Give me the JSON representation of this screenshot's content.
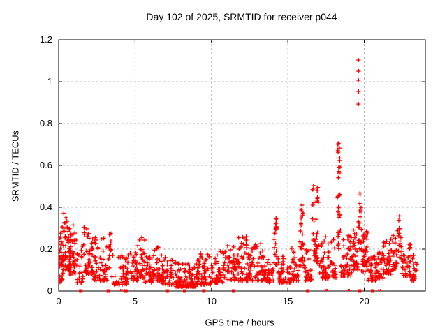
{
  "chart_data": {
    "type": "scatter",
    "title": "Day 102 of 2025, SRMTID for receiver p044",
    "xlabel": "GPS time / hours",
    "ylabel": "SRMTID / TECUs",
    "xlim": [
      0,
      24
    ],
    "ylim": [
      0,
      1.2
    ],
    "xticks": [
      0,
      5,
      10,
      15,
      20
    ],
    "yticks": [
      0,
      0.2,
      0.4,
      0.6,
      0.8,
      1,
      1.2
    ],
    "grid": true,
    "legend_position": "none",
    "marker": "plus-cross",
    "marker_color": "#ff0000",
    "grid_color": "#b3b3b3",
    "axis_color": "#000000",
    "background_color": "#ffffff",
    "series": [
      {
        "name": "SRMTID",
        "description": "dense + marker scatter; clusters give [x_start_hour, x_end_hour, n_points, y_min_TECU, y_max_TECU, low_bias_exponent] read off the plot",
        "clusters": [
          [
            0.02,
            0.35,
            40,
            0.04,
            0.31,
            1.6
          ],
          [
            0.3,
            0.75,
            50,
            0.1,
            0.375,
            1.4
          ],
          [
            0.7,
            1.1,
            40,
            0.07,
            0.335,
            1.5
          ],
          [
            1.1,
            1.65,
            28,
            0.04,
            0.27,
            2.2
          ],
          [
            1.65,
            2.3,
            60,
            0.08,
            0.315,
            1.8
          ],
          [
            2.3,
            3.15,
            55,
            0.05,
            0.26,
            2.0
          ],
          [
            3.2,
            3.45,
            14,
            0.1,
            0.295,
            1.2
          ],
          [
            3.45,
            4.65,
            50,
            0.03,
            0.18,
            1.8
          ],
          [
            4.65,
            5.15,
            30,
            0.05,
            0.19,
            1.8
          ],
          [
            5.15,
            5.65,
            32,
            0.06,
            0.26,
            1.8
          ],
          [
            5.65,
            6.2,
            35,
            0.04,
            0.17,
            1.8
          ],
          [
            6.2,
            6.75,
            38,
            0.05,
            0.235,
            1.8
          ],
          [
            6.75,
            7.65,
            50,
            0.03,
            0.16,
            1.8
          ],
          [
            7.65,
            9.05,
            95,
            0.02,
            0.14,
            1.9
          ],
          [
            9.05,
            9.95,
            60,
            0.03,
            0.18,
            1.8
          ],
          [
            9.95,
            10.95,
            60,
            0.04,
            0.19,
            1.9
          ],
          [
            10.95,
            11.65,
            42,
            0.05,
            0.225,
            1.9
          ],
          [
            11.65,
            12.55,
            58,
            0.05,
            0.26,
            1.9
          ],
          [
            12.55,
            13.45,
            55,
            0.05,
            0.23,
            1.9
          ],
          [
            13.45,
            14.05,
            35,
            0.04,
            0.16,
            1.7
          ],
          [
            14.1,
            14.32,
            22,
            0.12,
            0.375,
            1.1
          ],
          [
            14.35,
            15.15,
            42,
            0.04,
            0.17,
            1.7
          ],
          [
            15.15,
            15.75,
            36,
            0.05,
            0.21,
            1.7
          ],
          [
            15.78,
            16.02,
            24,
            0.12,
            0.42,
            1.1
          ],
          [
            16.05,
            16.55,
            30,
            0.05,
            0.22,
            1.7
          ],
          [
            16.6,
            17.05,
            45,
            0.13,
            0.51,
            1.3
          ],
          [
            17.05,
            18.15,
            65,
            0.06,
            0.26,
            1.9
          ],
          [
            18.25,
            18.45,
            30,
            0.2,
            0.775,
            1.0
          ],
          [
            18.45,
            19.25,
            48,
            0.07,
            0.27,
            1.8
          ],
          [
            19.25,
            19.58,
            26,
            0.1,
            0.31,
            1.5
          ],
          [
            19.6,
            19.82,
            20,
            0.14,
            0.55,
            1.2
          ],
          [
            19.8,
            20.25,
            38,
            0.09,
            0.29,
            1.6
          ],
          [
            20.25,
            20.75,
            30,
            0.05,
            0.17,
            1.8
          ],
          [
            20.75,
            21.25,
            34,
            0.06,
            0.19,
            1.8
          ],
          [
            21.25,
            21.8,
            38,
            0.08,
            0.25,
            1.7
          ],
          [
            21.8,
            22.15,
            26,
            0.1,
            0.27,
            1.6
          ],
          [
            22.18,
            22.42,
            16,
            0.14,
            0.36,
            1.1
          ],
          [
            22.45,
            23.1,
            40,
            0.07,
            0.25,
            1.8
          ],
          [
            23.1,
            23.45,
            22,
            0.05,
            0.18,
            1.6
          ]
        ],
        "outlier_points": [
          [
            19.62,
            0.893
          ],
          [
            19.63,
            0.953
          ],
          [
            19.62,
            1.007
          ],
          [
            19.63,
            1.05
          ],
          [
            19.62,
            1.103
          ]
        ],
        "peak_annotations": [
          {
            "x": 0.5,
            "y": 0.37
          },
          {
            "x": 2.0,
            "y": 0.31
          },
          {
            "x": 3.3,
            "y": 0.29
          },
          {
            "x": 5.3,
            "y": 0.25
          },
          {
            "x": 14.2,
            "y": 0.37
          },
          {
            "x": 15.9,
            "y": 0.42
          },
          {
            "x": 16.85,
            "y": 0.51
          },
          {
            "x": 18.35,
            "y": 0.77
          },
          {
            "x": 19.7,
            "y": 0.55
          },
          {
            "x": 22.3,
            "y": 0.36
          }
        ]
      }
    ],
    "zero_flag_squares_x": [
      1.45,
      3.25,
      4.4,
      7.1,
      8.25,
      9.5,
      11.45,
      16.3,
      19.7,
      20.55
    ],
    "zero_flag_ticks_x": [
      4.05,
      4.15,
      17.5,
      17.58,
      18.95,
      19.03,
      20.95,
      21.05
    ]
  }
}
